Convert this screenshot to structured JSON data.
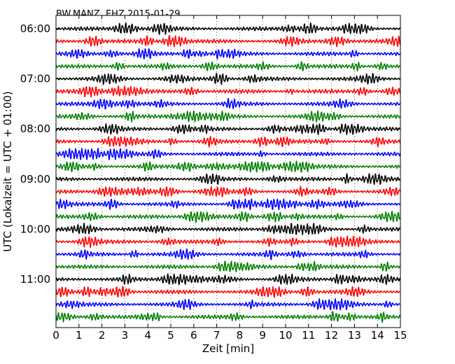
{
  "chart_data": {
    "type": "line",
    "title": "BW.MANZ..EHZ 2015-01-29",
    "xlabel": "Zeit  [min]",
    "ylabel": "UTC (Lokalzeit = UTC + 01:00)",
    "xlim": [
      0,
      15
    ],
    "x_ticks": [
      0,
      1,
      2,
      3,
      4,
      5,
      6,
      7,
      8,
      9,
      10,
      11,
      12,
      13,
      14,
      15
    ],
    "x_tick_labels": [
      "0",
      "1",
      "2",
      "3",
      "4",
      "5",
      "6",
      "7",
      "8",
      "9",
      "10",
      "11",
      "12",
      "13",
      "14",
      "15"
    ],
    "y_tick_labels": [
      "06:00",
      "07:00",
      "08:00",
      "09:00",
      "10:00",
      "11:00"
    ],
    "y_ticks_at_trace": [
      0,
      4,
      8,
      12,
      16,
      20
    ],
    "trace_count": 24,
    "trace_minutes": 15,
    "trace_colors": [
      "#000000",
      "#ff0000",
      "#0000ff",
      "#008000"
    ],
    "grid": "vertical dotted lines at each minute",
    "legend": "none"
  }
}
